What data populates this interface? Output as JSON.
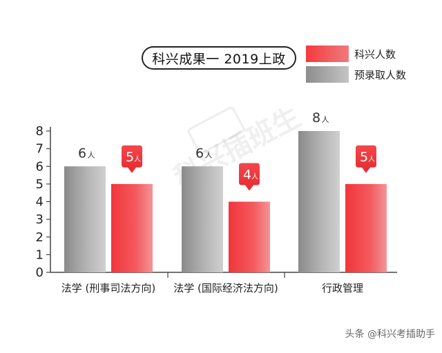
{
  "header": {
    "title": "科兴成果一 2019上政"
  },
  "legend": [
    {
      "label": "科兴人数",
      "color": "#f0353c"
    },
    {
      "label": "预录取人数",
      "color": "#9a9a9a"
    }
  ],
  "chart_data": {
    "type": "bar",
    "title": "科兴成果一 2019上政",
    "xlabel": "",
    "ylabel": "",
    "ylim": [
      0,
      8
    ],
    "yticks": [
      0,
      1,
      2,
      3,
      4,
      5,
      6,
      7,
      8
    ],
    "categories": [
      "法学 (刑事司法方向)",
      "法学 (国际经济法方向)",
      "行政管理"
    ],
    "series": [
      {
        "name": "预录取人数",
        "values": [
          6,
          6,
          8
        ],
        "color": "#9a9a9a",
        "label_style": "plain"
      },
      {
        "name": "科兴人数",
        "values": [
          5,
          4,
          5
        ],
        "color": "#f0353c",
        "label_style": "callout"
      }
    ],
    "unit": "人",
    "grid": false,
    "legend_position": "top-right"
  },
  "watermark": {
    "text": "科兴插班生",
    "logo_text": "KING"
  },
  "footer": {
    "credit": "头条 @科兴考插助手"
  }
}
